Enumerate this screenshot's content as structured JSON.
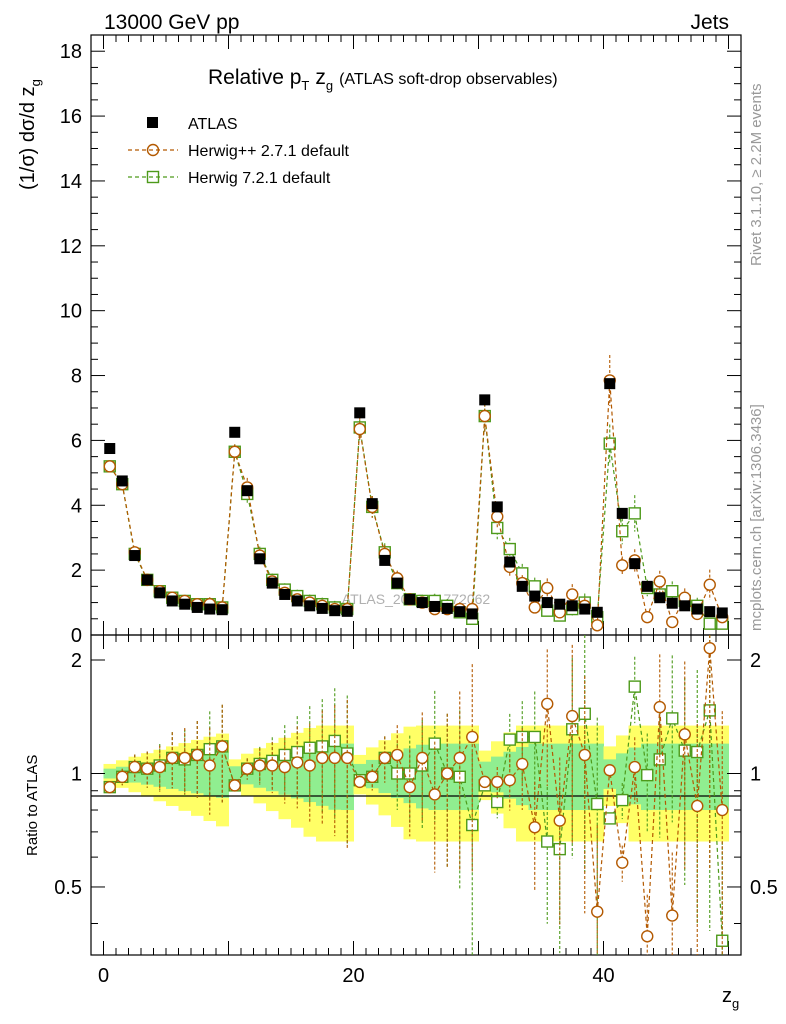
{
  "chart_data": {
    "type": "scatter",
    "header_left": "13000 GeV pp",
    "header_right": "Jets",
    "title_main": "Relative p",
    "title_sub_T": "T",
    "title_zg": "z",
    "title_sub_g": "g",
    "title_rest": "(ATLAS soft-drop observables)",
    "ylabel": "(1/σ) dσ/d z",
    "ylabel_sub": "g",
    "ratio_ylabel": "Ratio to ATLAS",
    "xlabel": "z",
    "xlabel_sub": "g",
    "watermark": "ATLAS_2019_I1772062",
    "side_text_top": "Rivet 3.1.10, ≥ 2.2M events",
    "side_text_bottom": "mcplots.cern.ch [arXiv:1306.3436]",
    "xlim": [
      -1,
      51
    ],
    "ylim": [
      0,
      18.5
    ],
    "ratio_ylim": [
      0.33,
      2.33
    ],
    "x_ticks": [
      "0",
      "20",
      "40"
    ],
    "y_ticks": [
      "0",
      "2",
      "4",
      "6",
      "8",
      "10",
      "12",
      "14",
      "16",
      "18"
    ],
    "ratio_ticks": [
      "0.5",
      "1",
      "2"
    ],
    "x": [
      0.5,
      1.5,
      2.5,
      3.5,
      4.5,
      5.5,
      6.5,
      7.5,
      8.5,
      9.5,
      10.5,
      11.5,
      12.5,
      13.5,
      14.5,
      15.5,
      16.5,
      17.5,
      18.5,
      19.5,
      20.5,
      21.5,
      22.5,
      23.5,
      24.5,
      25.5,
      26.5,
      27.5,
      28.5,
      29.5,
      30.5,
      31.5,
      32.5,
      33.5,
      34.5,
      35.5,
      36.5,
      37.5,
      38.5,
      39.5,
      40.5,
      41.5,
      42.5,
      43.5,
      44.5,
      45.5,
      46.5,
      47.5,
      48.5,
      49.5
    ],
    "series": [
      {
        "name": "ATLAS",
        "color": "#000000",
        "marker": "filled-square",
        "values": [
          5.75,
          4.75,
          2.45,
          1.7,
          1.3,
          1.05,
          0.95,
          0.85,
          0.8,
          0.78,
          6.25,
          4.45,
          2.35,
          1.6,
          1.25,
          1.05,
          0.9,
          0.82,
          0.75,
          0.73,
          6.85,
          4.05,
          2.3,
          1.6,
          1.1,
          1.0,
          0.88,
          0.82,
          0.72,
          0.65,
          7.25,
          3.95,
          2.25,
          1.5,
          1.2,
          1.0,
          0.95,
          0.9,
          0.8,
          0.7,
          7.75,
          3.75,
          2.2,
          1.5,
          1.15,
          0.98,
          0.9,
          0.8,
          0.72,
          0.68
        ]
      },
      {
        "name": "Herwig++ 2.7.1 default",
        "color": "#b35900",
        "marker": "open-circle",
        "values": [
          5.2,
          4.65,
          2.55,
          1.7,
          1.35,
          1.15,
          1.05,
          0.95,
          0.95,
          0.85,
          5.65,
          4.55,
          2.45,
          1.65,
          1.3,
          1.1,
          1.0,
          0.9,
          0.8,
          0.8,
          6.35,
          3.95,
          2.5,
          1.75,
          1.1,
          1.0,
          0.8,
          0.8,
          0.8,
          0.8,
          6.75,
          3.65,
          2.1,
          1.6,
          0.85,
          1.45,
          0.7,
          1.25,
          0.9,
          0.3,
          7.85,
          2.15,
          2.3,
          0.55,
          1.65,
          0.4,
          1.15,
          0.65,
          1.55,
          0.55
        ]
      },
      {
        "name": "Herwig 7.2.1 default",
        "color": "#4d9a1a",
        "marker": "open-square",
        "values": [
          5.2,
          4.65,
          2.5,
          1.7,
          1.35,
          1.15,
          1.05,
          0.95,
          0.95,
          0.85,
          5.65,
          4.35,
          2.5,
          1.7,
          1.4,
          1.2,
          1.05,
          0.95,
          0.85,
          0.8,
          6.4,
          3.95,
          2.55,
          1.6,
          1.1,
          1.05,
          1.05,
          0.9,
          0.7,
          0.5,
          6.75,
          3.3,
          2.65,
          1.9,
          1.5,
          0.75,
          0.6,
          0.8,
          1.0,
          0.55,
          5.9,
          3.2,
          3.75,
          1.45,
          1.25,
          1.35,
          1.05,
          0.9,
          0.35,
          0.35
        ]
      }
    ],
    "ratio_series": [
      {
        "name": "Herwig++ 2.7.1 default",
        "values": [
          0.92,
          0.98,
          1.04,
          1.03,
          1.04,
          1.1,
          1.1,
          1.12,
          1.05,
          1.18,
          0.93,
          1.03,
          1.05,
          1.05,
          1.04,
          1.07,
          1.05,
          1.1,
          1.1,
          1.1,
          0.95,
          0.98,
          1.1,
          1.12,
          0.92,
          1.1,
          0.88,
          1.0,
          1.1,
          1.25,
          0.95,
          0.95,
          0.96,
          1.06,
          0.72,
          1.53,
          0.75,
          1.42,
          1.12,
          0.43,
          1.02,
          0.58,
          1.04,
          0.37,
          1.5,
          0.42,
          1.27,
          0.82,
          2.15,
          0.8
        ]
      },
      {
        "name": "Herwig 7.2.1 default",
        "values": [
          0.92,
          0.98,
          1.04,
          1.03,
          1.05,
          1.1,
          1.09,
          1.12,
          1.16,
          1.18,
          0.93,
          1.03,
          1.06,
          1.08,
          1.12,
          1.14,
          1.17,
          1.18,
          1.22,
          1.13,
          0.96,
          0.98,
          1.1,
          1.0,
          1.0,
          1.05,
          1.2,
          1.0,
          0.98,
          0.73,
          0.93,
          0.84,
          1.23,
          1.25,
          1.25,
          0.66,
          0.63,
          1.31,
          1.44,
          0.83,
          0.76,
          0.85,
          1.7,
          0.99,
          1.09,
          1.4,
          1.15,
          1.14,
          1.47,
          0.36
        ]
      }
    ],
    "bands": {
      "inner_color": "#90ee90",
      "outer_color": "#ffff66"
    },
    "legend_position": "top-left",
    "grid": false
  }
}
